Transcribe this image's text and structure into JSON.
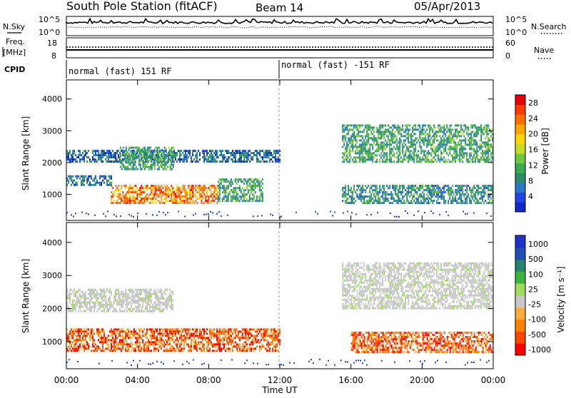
{
  "header": {
    "station": "South Pole Station (fitACF)",
    "beam": "Beam 14",
    "date": "05/Apr/2013"
  },
  "top_panels": {
    "nsky_label": "N.Sky",
    "nsearch_label": "N.Search",
    "noise_ticks": [
      "10^5",
      "10^0"
    ],
    "freq_label_1": "Freq.",
    "freq_label_2": "[MHz]",
    "freq_ticks": [
      "18",
      "8"
    ],
    "nave_label": "Nave",
    "nave_ticks": [
      "60",
      "0"
    ],
    "cpid_label": "CPID",
    "cpid_segments": [
      {
        "label": "normal (fast) 151 RF",
        "start_hour": 0,
        "end_hour": 12
      },
      {
        "label": "normal (fast) -151 RF",
        "start_hour": 12,
        "end_hour": 24
      }
    ]
  },
  "colors": {
    "power_scale": [
      "#1428c8",
      "#1e46e6",
      "#2878c8",
      "#2d8c64",
      "#3caa50",
      "#6ec83c",
      "#c8dc1e",
      "#ffd700",
      "#ffa500",
      "#ff6e00",
      "#ff3c00",
      "#e60000"
    ],
    "velocity_scale": [
      "#ff0000",
      "#ff4600",
      "#ff8200",
      "#ffaa3c",
      "#c8c8c8",
      "#a0dc5a",
      "#3cb43c",
      "#28826e",
      "#1e50b4",
      "#1e32c8"
    ],
    "scatter_blue": "#1e46c8",
    "ground_gray": "#c8c8c8"
  },
  "chart_data": [
    {
      "type": "heatmap",
      "name": "power",
      "ylabel": "Slant Range [km]",
      "xlabel": "Time UT",
      "x_ticks": [
        "00:00",
        "04:00",
        "08:00",
        "12:00",
        "16:00",
        "20:00",
        "00:00"
      ],
      "xlim_hours": [
        0,
        24
      ],
      "y_ticks": [
        "1000",
        "2000",
        "3000",
        "4000"
      ],
      "ylim_km": [
        180,
        4600
      ],
      "colorbar_label": "Power [dB]",
      "colorbar_ticks": [
        "28",
        "24",
        "20",
        "16",
        "12",
        "8",
        "4"
      ],
      "colorbar_range": [
        0,
        30
      ],
      "echo_regions": [
        {
          "t": [
            2.5,
            8.5
          ],
          "r": [
            700,
            1300
          ],
          "level": 24
        },
        {
          "t": [
            8.5,
            11
          ],
          "r": [
            800,
            1500
          ],
          "level": 10
        },
        {
          "t": [
            0,
            2.5
          ],
          "r": [
            1300,
            1600
          ],
          "level": 6
        },
        {
          "t": [
            0,
            12
          ],
          "r": [
            2000,
            2400
          ],
          "level": 5
        },
        {
          "t": [
            3,
            6
          ],
          "r": [
            1800,
            2500
          ],
          "level": 10
        },
        {
          "t": [
            15.5,
            24
          ],
          "r": [
            2000,
            3200
          ],
          "level": 10
        },
        {
          "t": [
            15.5,
            24
          ],
          "r": [
            700,
            1300
          ],
          "level": 8
        }
      ]
    },
    {
      "type": "heatmap",
      "name": "velocity",
      "ylabel": "Slant Range [km]",
      "xlabel": "Time UT",
      "x_ticks": [
        "00:00",
        "04:00",
        "08:00",
        "12:00",
        "16:00",
        "20:00",
        "00:00"
      ],
      "xlim_hours": [
        0,
        24
      ],
      "y_ticks": [
        "1000",
        "2000",
        "3000",
        "4000"
      ],
      "ylim_km": [
        180,
        4600
      ],
      "colorbar_label": "Velocity [m s⁻¹]",
      "colorbar_ticks": [
        "1000",
        "500",
        "100",
        "25",
        "-25",
        "-100",
        "-500",
        "-1000"
      ],
      "echo_regions": [
        {
          "t": [
            0,
            12
          ],
          "r": [
            700,
            1400
          ],
          "velocity": -300
        },
        {
          "t": [
            16,
            24
          ],
          "r": [
            700,
            1300
          ],
          "velocity": -300
        },
        {
          "t": [
            0,
            6
          ],
          "r": [
            1900,
            2600
          ],
          "velocity": 0
        },
        {
          "t": [
            15.5,
            24
          ],
          "r": [
            2000,
            3400
          ],
          "velocity": 0
        }
      ]
    }
  ]
}
